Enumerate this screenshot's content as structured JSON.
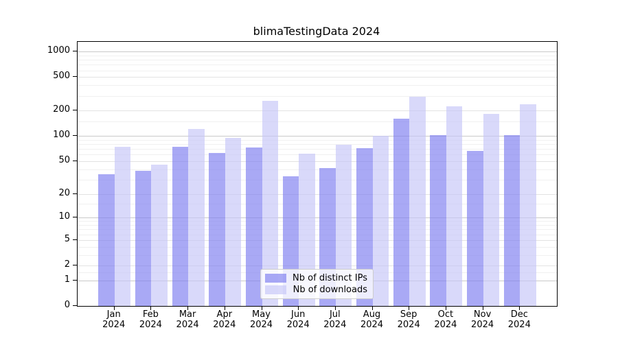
{
  "title": "blimaTestingData 2024",
  "chart_data": {
    "type": "bar",
    "title": "blimaTestingData 2024",
    "categories": [
      "Jan",
      "Feb",
      "Mar",
      "Apr",
      "May",
      "Jun",
      "Jul",
      "Aug",
      "Sep",
      "Oct",
      "Nov",
      "Dec"
    ],
    "x_tick_year": "2024",
    "series": [
      {
        "name": "Nb of distinct IPs",
        "color": "rgba(124,124,240,0.66)",
        "values": [
          35,
          38,
          75,
          63,
          73,
          33,
          41,
          72,
          160,
          103,
          66,
          102
        ]
      },
      {
        "name": "Nb of downloads",
        "color": "rgba(197,197,248,0.66)",
        "values": [
          75,
          45,
          121,
          95,
          262,
          61,
          78,
          101,
          295,
          224,
          183,
          240
        ]
      }
    ],
    "yscale": "log1p",
    "ylim": [
      0,
      1300
    ],
    "yticks": [
      0,
      1,
      2,
      5,
      10,
      20,
      50,
      100,
      200,
      500,
      1000
    ],
    "minor_gridlines": [
      1.5,
      3,
      4,
      6,
      7,
      8,
      9,
      15,
      30,
      40,
      60,
      70,
      80,
      90,
      150,
      300,
      400,
      600,
      700,
      800,
      900
    ],
    "emphasized_gridlines": [
      1,
      10,
      100,
      1000
    ],
    "grid": "horizontal major+minor",
    "legend": {
      "position": "lower center"
    }
  }
}
